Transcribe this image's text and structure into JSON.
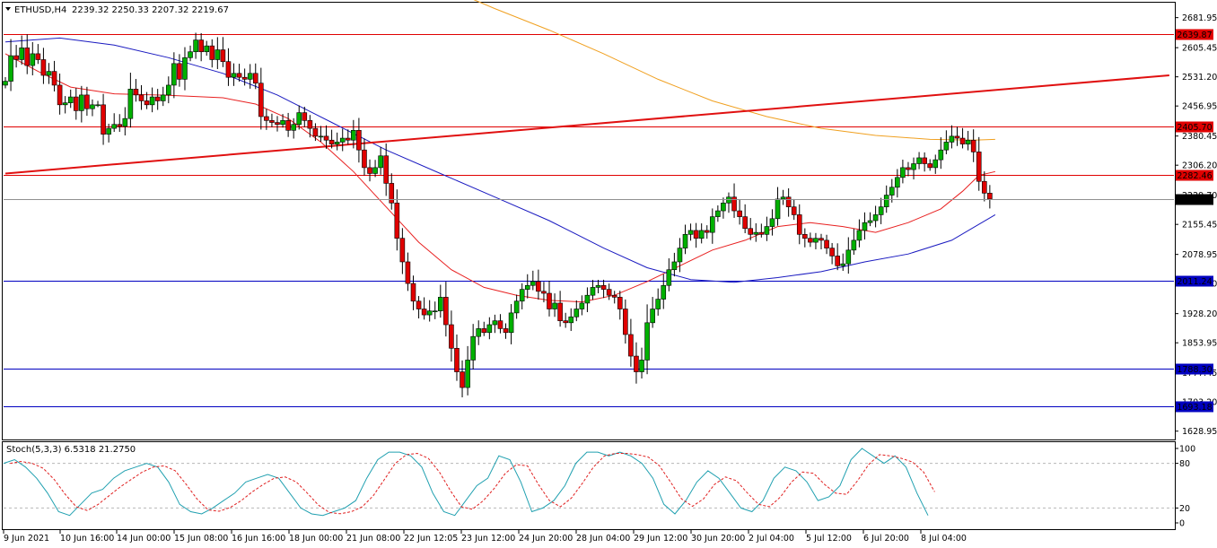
{
  "header": {
    "symbol": "ETHUSD,H4",
    "ohlc": "2239.32 2250.33 2207.32 2219.67",
    "menu_icon": "triangle-down-icon"
  },
  "chart_data": [
    {
      "type": "candlestick",
      "title": "ETHUSD,H4",
      "ylim": [
        1610,
        2720
      ],
      "y_ticks": [
        "2681.95",
        "2605.45",
        "2531.20",
        "2456.95",
        "2380.45",
        "2306.20",
        "2229.70",
        "2155.45",
        "2078.95",
        "2004.70",
        "1928.20",
        "1853.95",
        "1777.45",
        "1703.20",
        "1628.95"
      ],
      "x_ticks": [
        "9 Jun 2021",
        "10 Jun 16:00",
        "14 Jun 00:00",
        "15 Jun 08:00",
        "16 Jun 16:00",
        "18 Jun 00:00",
        "21 Jun 08:00",
        "22 Jun 12:05",
        "23 Jun 12:00",
        "24 Jun 20:00",
        "28 Jun 04:00",
        "29 Jun 12:00",
        "30 Jun 20:00",
        "2 Jul 04:00",
        "5 Jul 12:00",
        "6 Jul 20:00",
        "8 Jul 04:00"
      ],
      "current_price": "2219.67",
      "horizontal_levels": [
        {
          "price": 2639.87,
          "label": "2639.87",
          "color": "#e00000"
        },
        {
          "price": 2405.7,
          "label": "2405.70",
          "color": "#e00000"
        },
        {
          "price": 2282.46,
          "label": "2282.46",
          "color": "#e00000"
        },
        {
          "price": 2011.24,
          "label": "2011.24",
          "color": "#0000c0"
        },
        {
          "price": 1788.3,
          "label": "1788.30",
          "color": "#0000c0"
        },
        {
          "price": 1693.18,
          "label": "1693.18",
          "color": "#0000c0"
        }
      ],
      "trendline": {
        "from": {
          "bar": 0,
          "price": 2285
        },
        "to": {
          "bar": 214,
          "price": 2535
        },
        "color": "#e01010"
      },
      "moving_averages": [
        {
          "color": "#e82020",
          "values": [
            [
              0,
              2590
            ],
            [
              6,
              2545
            ],
            [
              12,
              2505
            ],
            [
              20,
              2488
            ],
            [
              30,
              2484
            ],
            [
              40,
              2478
            ],
            [
              46,
              2462
            ],
            [
              52,
              2425
            ],
            [
              58,
              2365
            ],
            [
              64,
              2290
            ],
            [
              70,
              2200
            ],
            [
              76,
              2110
            ],
            [
              82,
              2040
            ],
            [
              88,
              1995
            ],
            [
              94,
              1975
            ],
            [
              100,
              1962
            ],
            [
              106,
              1958
            ],
            [
              112,
              1975
            ],
            [
              118,
              2010
            ],
            [
              124,
              2050
            ],
            [
              130,
              2090
            ],
            [
              136,
              2115
            ],
            [
              142,
              2150
            ],
            [
              148,
              2160
            ],
            [
              154,
              2150
            ],
            [
              160,
              2135
            ],
            [
              166,
              2160
            ],
            [
              172,
              2195
            ],
            [
              176,
              2240
            ],
            [
              179,
              2280
            ],
            [
              182,
              2290
            ]
          ]
        },
        {
          "color": "#1a1ac0",
          "values": [
            [
              0,
              2620
            ],
            [
              10,
              2630
            ],
            [
              20,
              2612
            ],
            [
              30,
              2580
            ],
            [
              40,
              2540
            ],
            [
              50,
              2485
            ],
            [
              60,
              2415
            ],
            [
              70,
              2345
            ],
            [
              80,
              2285
            ],
            [
              90,
              2225
            ],
            [
              100,
              2165
            ],
            [
              110,
              2095
            ],
            [
              118,
              2045
            ],
            [
              126,
              2015
            ],
            [
              134,
              2008
            ],
            [
              142,
              2020
            ],
            [
              150,
              2035
            ],
            [
              158,
              2060
            ],
            [
              166,
              2080
            ],
            [
              174,
              2115
            ],
            [
              182,
              2180
            ]
          ]
        },
        {
          "color": "#f0a020",
          "values": [
            [
              84,
              2740
            ],
            [
              90,
              2705
            ],
            [
              100,
              2650
            ],
            [
              110,
              2590
            ],
            [
              120,
              2525
            ],
            [
              130,
              2470
            ],
            [
              140,
              2430
            ],
            [
              150,
              2400
            ],
            [
              160,
              2382
            ],
            [
              170,
              2372
            ],
            [
              178,
              2370
            ],
            [
              182,
              2372
            ]
          ]
        }
      ],
      "candles_close": [
        2520,
        2585,
        2575,
        2605,
        2560,
        2590,
        2575,
        2535,
        2545,
        2510,
        2460,
        2465,
        2480,
        2445,
        2485,
        2450,
        2460,
        2460,
        2385,
        2400,
        2410,
        2405,
        2425,
        2500,
        2485,
        2470,
        2460,
        2480,
        2470,
        2485,
        2510,
        2565,
        2525,
        2580,
        2595,
        2625,
        2595,
        2610,
        2575,
        2600,
        2570,
        2530,
        2540,
        2530,
        2525,
        2540,
        2515,
        2430,
        2420,
        2415,
        2410,
        2420,
        2395,
        2410,
        2440,
        2420,
        2400,
        2380,
        2380,
        2370,
        2360,
        2365,
        2375,
        2370,
        2395,
        2345,
        2300,
        2285,
        2300,
        2330,
        2260,
        2210,
        2120,
        2060,
        2005,
        1960,
        1940,
        1925,
        1935,
        1935,
        1970,
        1900,
        1840,
        1780,
        1740,
        1810,
        1870,
        1890,
        1880,
        1900,
        1910,
        1890,
        1880,
        1930,
        1960,
        1990,
        2000,
        2010,
        1985,
        1980,
        1940,
        1955,
        1910,
        1905,
        1920,
        1940,
        1955,
        1975,
        1995,
        2000,
        1990,
        1975,
        1970,
        1940,
        1875,
        1820,
        1780,
        1810,
        1905,
        1940,
        1965,
        2000,
        2040,
        2060,
        2095,
        2130,
        2140,
        2120,
        2140,
        2135,
        2175,
        2190,
        2210,
        2225,
        2190,
        2175,
        2145,
        2130,
        2135,
        2130,
        2150,
        2170,
        2220,
        2225,
        2200,
        2180,
        2130,
        2120,
        2110,
        2120,
        2115,
        2095,
        2075,
        2050,
        2055,
        2090,
        2115,
        2140,
        2160,
        2165,
        2180,
        2200,
        2230,
        2250,
        2275,
        2300,
        2295,
        2310,
        2325,
        2310,
        2300,
        2320,
        2345,
        2365,
        2380,
        2375,
        2360,
        2370,
        2340,
        2265,
        2235,
        2220
      ],
      "indicator": {
        "label": "Stoch(5,3,3) 6.5318 21.2750",
        "ylim": [
          0,
          100
        ],
        "levels": [
          80,
          20
        ],
        "y_ticks": [
          "100",
          "80",
          "20",
          "0"
        ],
        "main_color": "#20a0b0",
        "signal_color": "#e02020",
        "main": [
          80,
          85,
          75,
          60,
          40,
          15,
          10,
          25,
          40,
          45,
          60,
          70,
          75,
          80,
          75,
          55,
          25,
          15,
          12,
          20,
          30,
          40,
          55,
          60,
          65,
          60,
          40,
          20,
          12,
          10,
          15,
          20,
          30,
          60,
          85,
          95,
          95,
          90,
          75,
          40,
          15,
          10,
          30,
          50,
          60,
          90,
          85,
          55,
          15,
          20,
          30,
          50,
          80,
          95,
          95,
          90,
          95,
          90,
          80,
          60,
          25,
          12,
          30,
          55,
          70,
          60,
          40,
          20,
          15,
          30,
          60,
          75,
          70,
          55,
          30,
          35,
          50,
          85,
          100,
          90,
          80,
          90,
          75,
          40,
          10
        ]
      }
    }
  ]
}
